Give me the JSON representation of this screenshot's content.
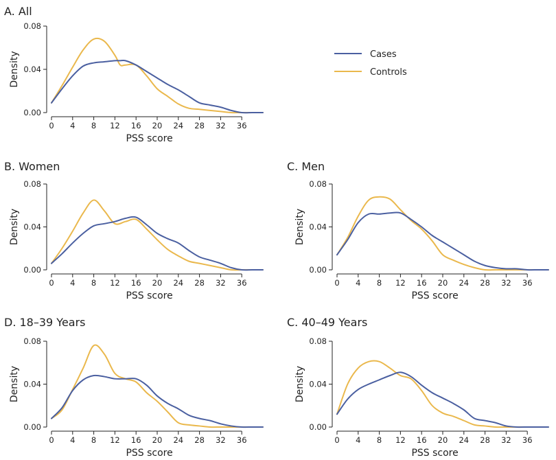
{
  "legend": {
    "items": [
      {
        "name": "Cases",
        "color": "#4a5fa0"
      },
      {
        "name": "Controls",
        "color": "#eab84c"
      }
    ]
  },
  "chart_data": [
    {
      "type": "line",
      "title": "A. All",
      "xlabel": "PSS score",
      "ylabel": "Density",
      "xlim": [
        0,
        40
      ],
      "ylim": [
        0,
        0.08
      ],
      "xticks": [
        "0",
        "4",
        "8",
        "12",
        "16",
        "20",
        "24",
        "28",
        "32",
        "36"
      ],
      "yticks": [
        "0.00",
        "0.04",
        "0.08"
      ],
      "x": [
        0,
        2,
        4,
        6,
        8,
        10,
        12,
        13,
        14,
        16,
        18,
        20,
        22,
        24,
        26,
        28,
        30,
        32,
        34,
        36,
        38,
        40
      ],
      "series": [
        {
          "name": "Cases",
          "values": [
            0.009,
            0.022,
            0.034,
            0.043,
            0.046,
            0.047,
            0.048,
            0.048,
            0.048,
            0.044,
            0.038,
            0.032,
            0.026,
            0.021,
            0.015,
            0.009,
            0.007,
            0.005,
            0.002,
            0.0,
            0.0,
            0.0
          ]
        },
        {
          "name": "Controls",
          "values": [
            0.009,
            0.025,
            0.042,
            0.058,
            0.068,
            0.066,
            0.053,
            0.044,
            0.044,
            0.044,
            0.034,
            0.022,
            0.015,
            0.008,
            0.004,
            0.003,
            0.002,
            0.001,
            0.0,
            0.0,
            0.0,
            0.0
          ]
        }
      ]
    },
    {
      "type": "line",
      "title": "B. Women",
      "xlabel": "PSS score",
      "ylabel": "Density",
      "xlim": [
        0,
        40
      ],
      "ylim": [
        0,
        0.08
      ],
      "xticks": [
        "0",
        "4",
        "8",
        "12",
        "16",
        "20",
        "24",
        "28",
        "32",
        "36"
      ],
      "yticks": [
        "0.00",
        "0.04",
        "0.08"
      ],
      "x": [
        0,
        2,
        4,
        6,
        8,
        10,
        12,
        14,
        16,
        18,
        20,
        22,
        24,
        26,
        28,
        30,
        32,
        34,
        36,
        38,
        40
      ],
      "series": [
        {
          "name": "Cases",
          "values": [
            0.006,
            0.015,
            0.025,
            0.034,
            0.041,
            0.043,
            0.045,
            0.048,
            0.049,
            0.042,
            0.034,
            0.029,
            0.025,
            0.018,
            0.012,
            0.009,
            0.006,
            0.002,
            0.0,
            0.0,
            0.0
          ]
        },
        {
          "name": "Controls",
          "values": [
            0.006,
            0.02,
            0.036,
            0.053,
            0.065,
            0.055,
            0.043,
            0.045,
            0.047,
            0.038,
            0.028,
            0.019,
            0.013,
            0.008,
            0.006,
            0.004,
            0.002,
            0.0,
            0.0,
            0.0,
            0.0
          ]
        }
      ]
    },
    {
      "type": "line",
      "title": "C. Men",
      "xlabel": "PSS score",
      "ylabel": "Density",
      "xlim": [
        0,
        40
      ],
      "ylim": [
        0,
        0.08
      ],
      "xticks": [
        "0",
        "4",
        "8",
        "12",
        "16",
        "20",
        "24",
        "28",
        "32",
        "36"
      ],
      "yticks": [
        "0.00",
        "0.04",
        "0.08"
      ],
      "x": [
        0,
        2,
        4,
        6,
        8,
        10,
        12,
        14,
        16,
        18,
        20,
        22,
        24,
        26,
        28,
        30,
        32,
        34,
        36,
        38,
        40
      ],
      "series": [
        {
          "name": "Cases",
          "values": [
            0.014,
            0.028,
            0.044,
            0.052,
            0.052,
            0.053,
            0.053,
            0.047,
            0.04,
            0.032,
            0.026,
            0.02,
            0.014,
            0.008,
            0.004,
            0.002,
            0.001,
            0.001,
            0.0,
            0.0,
            0.0
          ]
        },
        {
          "name": "Controls",
          "values": [
            0.014,
            0.03,
            0.05,
            0.065,
            0.068,
            0.066,
            0.056,
            0.046,
            0.038,
            0.027,
            0.014,
            0.009,
            0.005,
            0.002,
            0.0,
            0.0,
            0.0,
            0.0,
            0.0,
            0.0,
            0.0
          ]
        }
      ]
    },
    {
      "type": "line",
      "title": "D. 18–39 Years",
      "xlabel": "PSS score",
      "ylabel": "Density",
      "xlim": [
        0,
        40
      ],
      "ylim": [
        0,
        0.08
      ],
      "xticks": [
        "0",
        "4",
        "8",
        "12",
        "16",
        "20",
        "24",
        "28",
        "32",
        "36"
      ],
      "yticks": [
        "0.00",
        "0.04",
        "0.08"
      ],
      "x": [
        0,
        2,
        4,
        6,
        8,
        10,
        12,
        14,
        16,
        18,
        20,
        22,
        24,
        26,
        28,
        30,
        32,
        34,
        36,
        38,
        40
      ],
      "series": [
        {
          "name": "Cases",
          "values": [
            0.008,
            0.018,
            0.034,
            0.044,
            0.048,
            0.047,
            0.045,
            0.045,
            0.045,
            0.039,
            0.029,
            0.022,
            0.017,
            0.011,
            0.008,
            0.006,
            0.003,
            0.001,
            0.0,
            0.0,
            0.0
          ]
        },
        {
          "name": "Controls",
          "values": [
            0.008,
            0.016,
            0.035,
            0.055,
            0.076,
            0.068,
            0.05,
            0.045,
            0.042,
            0.032,
            0.024,
            0.014,
            0.004,
            0.002,
            0.001,
            0.0,
            0.0,
            0.0,
            0.0,
            0.0,
            0.0
          ]
        }
      ]
    },
    {
      "type": "line",
      "title": "C. 40–49 Years",
      "xlabel": "PSS score",
      "ylabel": "Density",
      "xlim": [
        0,
        40
      ],
      "ylim": [
        0,
        0.08
      ],
      "xticks": [
        "0",
        "4",
        "8",
        "12",
        "16",
        "20",
        "24",
        "28",
        "32",
        "36"
      ],
      "yticks": [
        "0.00",
        "0.04",
        "0.08"
      ],
      "x": [
        0,
        2,
        4,
        6,
        8,
        10,
        12,
        14,
        16,
        18,
        20,
        22,
        24,
        26,
        28,
        30,
        32,
        34,
        36,
        38,
        40
      ],
      "series": [
        {
          "name": "Cases",
          "values": [
            0.012,
            0.026,
            0.035,
            0.04,
            0.044,
            0.048,
            0.051,
            0.047,
            0.039,
            0.032,
            0.027,
            0.022,
            0.016,
            0.008,
            0.006,
            0.004,
            0.001,
            0.0,
            0.0,
            0.0,
            0.0
          ]
        },
        {
          "name": "Controls",
          "values": [
            0.012,
            0.04,
            0.055,
            0.061,
            0.061,
            0.055,
            0.048,
            0.045,
            0.034,
            0.02,
            0.013,
            0.01,
            0.006,
            0.002,
            0.001,
            0.0,
            0.0,
            0.0,
            0.0,
            0.0,
            0.0
          ]
        }
      ]
    }
  ]
}
